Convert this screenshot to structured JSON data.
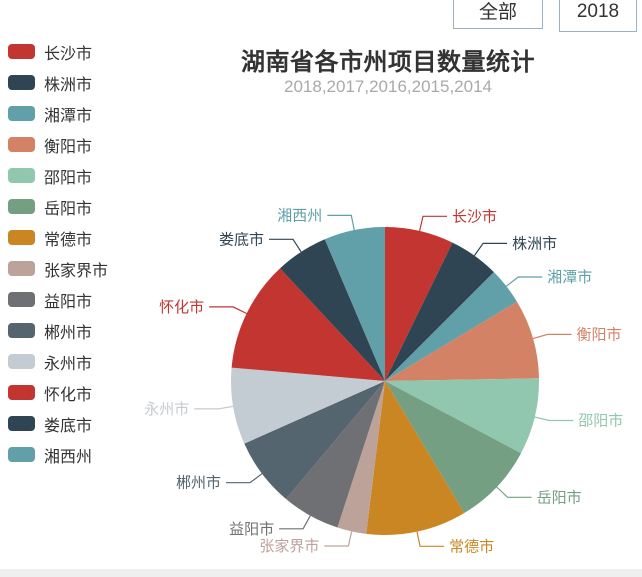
{
  "window": {
    "background": "#ffffff",
    "footer_bar_color": "#efeff0"
  },
  "toolbar": {
    "all_button_label": "全部",
    "year_button_label": "2018",
    "border_color": "#9cb1c5"
  },
  "chart": {
    "title": "湖南省各市州项目数量统计",
    "subtitle": "2018,2017,2016,2015,2014",
    "title_color": "#333333",
    "subtitle_color": "#a9a9a9"
  },
  "chart_data": {
    "type": "pie",
    "title": "湖南省各市州项目数量统计",
    "subtitle": "2018,2017,2016,2015,2014",
    "legend_position": "left",
    "label_layout": "outside labels with elbow connector lines, text and line colored same as slice",
    "start_angle": "12 o'clock, clockwise",
    "categories": [
      "长沙市",
      "株洲市",
      "湘潭市",
      "衡阳市",
      "邵阳市",
      "岳阳市",
      "常德市",
      "张家界市",
      "益阳市",
      "郴州市",
      "永州市",
      "怀化市",
      "娄底市",
      "湘西州"
    ],
    "values": [
      26,
      19,
      14,
      30,
      29,
      31,
      38,
      11,
      22,
      26,
      29,
      42,
      20,
      23
    ],
    "colors": [
      "#c23531",
      "#2f4554",
      "#61a0a8",
      "#d48265",
      "#91c7ae",
      "#749f83",
      "#ca8622",
      "#bda29a",
      "#6e7074",
      "#546570",
      "#c4ccd3",
      "#c23531",
      "#2f4554",
      "#61a0a8"
    ]
  }
}
